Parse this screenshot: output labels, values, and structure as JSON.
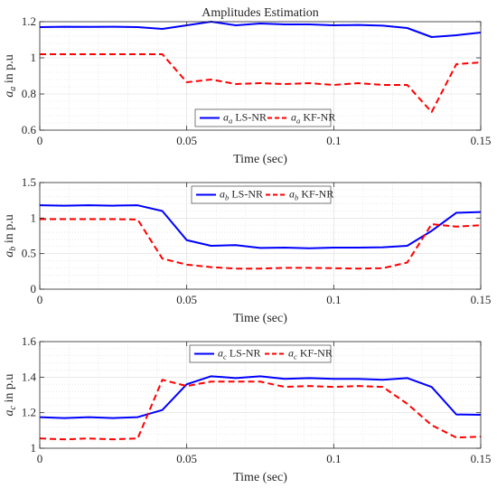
{
  "chart_data": [
    {
      "type": "line",
      "title": "Amplitudes Estimation",
      "xlabel": "Time (sec)",
      "ylabel": "a_a in p.u",
      "ylabel_parts": {
        "sym": "a",
        "sub": "a",
        "rest": " in p.u"
      },
      "xlim": [
        0,
        0.15
      ],
      "ylim": [
        0.6,
        1.2
      ],
      "xticks": [
        0,
        0.05,
        0.1,
        0.15
      ],
      "xtick_labels": [
        "0",
        "0.05",
        "0.1",
        "0.15"
      ],
      "yticks": [
        0.6,
        0.8,
        1.0,
        1.2
      ],
      "ytick_labels": [
        "0.6",
        "0.8",
        "1",
        "1.2"
      ],
      "grid": true,
      "legend_position": "bottom-center",
      "legend_orientation": "horizontal",
      "series": [
        {
          "name": "a_a LS-NR",
          "name_parts": {
            "sym": "a",
            "sub": "a",
            "rest": " LS-NR"
          },
          "color": "#0000ff",
          "dash": "solid",
          "x": [
            0,
            0.0083,
            0.0167,
            0.025,
            0.0333,
            0.0417,
            0.05,
            0.0583,
            0.0667,
            0.075,
            0.0833,
            0.0917,
            0.1,
            0.1083,
            0.1167,
            0.125,
            0.1333,
            0.1417,
            0.15
          ],
          "y": [
            1.17,
            1.172,
            1.171,
            1.172,
            1.17,
            1.16,
            1.18,
            1.2,
            1.18,
            1.19,
            1.185,
            1.185,
            1.18,
            1.182,
            1.178,
            1.165,
            1.115,
            1.125,
            1.14
          ]
        },
        {
          "name": "a_a KF-NR",
          "name_parts": {
            "sym": "a",
            "sub": "a",
            "rest": " KF-NR"
          },
          "color": "#ff0000",
          "dash": "dashed",
          "x": [
            0,
            0.0083,
            0.0167,
            0.025,
            0.0333,
            0.0417,
            0.05,
            0.0583,
            0.0667,
            0.075,
            0.0833,
            0.0917,
            0.1,
            0.1083,
            0.1167,
            0.125,
            0.1333,
            0.1417,
            0.15
          ],
          "y": [
            1.02,
            1.02,
            1.02,
            1.02,
            1.02,
            1.02,
            0.865,
            0.88,
            0.855,
            0.86,
            0.855,
            0.86,
            0.85,
            0.86,
            0.85,
            0.85,
            0.7,
            0.965,
            0.975
          ]
        }
      ]
    },
    {
      "type": "line",
      "title": "",
      "xlabel": "Time (sec)",
      "ylabel": "a_b in p.u",
      "ylabel_parts": {
        "sym": "a",
        "sub": "b",
        "rest": " in p.u"
      },
      "xlim": [
        0,
        0.15
      ],
      "ylim": [
        0,
        1.5
      ],
      "xticks": [
        0,
        0.05,
        0.1,
        0.15
      ],
      "xtick_labels": [
        "0",
        "0.05",
        "0.1",
        "0.15"
      ],
      "yticks": [
        0,
        0.5,
        1.0,
        1.5
      ],
      "ytick_labels": [
        "0",
        "0.5",
        "1",
        "1.5"
      ],
      "grid": true,
      "legend_position": "top-center",
      "legend_orientation": "horizontal",
      "series": [
        {
          "name": "a_b LS-NR",
          "name_parts": {
            "sym": "a",
            "sub": "b",
            "rest": " LS-NR"
          },
          "color": "#0000ff",
          "dash": "solid",
          "x": [
            0,
            0.0083,
            0.0167,
            0.025,
            0.0333,
            0.0417,
            0.05,
            0.0583,
            0.0667,
            0.075,
            0.0833,
            0.0917,
            0.1,
            0.1083,
            0.1167,
            0.125,
            0.1333,
            0.1417,
            0.15
          ],
          "y": [
            1.18,
            1.175,
            1.18,
            1.175,
            1.18,
            1.1,
            0.69,
            0.61,
            0.62,
            0.58,
            0.585,
            0.575,
            0.585,
            0.585,
            0.59,
            0.61,
            0.82,
            1.075,
            1.085
          ]
        },
        {
          "name": "a_b KF-NR",
          "name_parts": {
            "sym": "a",
            "sub": "b",
            "rest": " KF-NR"
          },
          "color": "#ff0000",
          "dash": "dashed",
          "x": [
            0,
            0.0083,
            0.0167,
            0.025,
            0.0333,
            0.0417,
            0.05,
            0.0583,
            0.0667,
            0.075,
            0.0833,
            0.0917,
            0.1,
            0.1083,
            0.1167,
            0.125,
            0.1333,
            0.1417,
            0.15
          ],
          "y": [
            0.985,
            0.985,
            0.985,
            0.985,
            0.98,
            0.43,
            0.345,
            0.31,
            0.29,
            0.29,
            0.3,
            0.3,
            0.295,
            0.29,
            0.295,
            0.375,
            0.915,
            0.88,
            0.9
          ]
        }
      ]
    },
    {
      "type": "line",
      "title": "",
      "xlabel": "Time (sec)",
      "ylabel": "a_c in p.u",
      "ylabel_parts": {
        "sym": "a",
        "sub": "c",
        "rest": " in p.u"
      },
      "xlim": [
        0,
        0.15
      ],
      "ylim": [
        1.0,
        1.6
      ],
      "xticks": [
        0,
        0.05,
        0.1,
        0.15
      ],
      "xtick_labels": [
        "0",
        "0.05",
        "0.1",
        "0.15"
      ],
      "yticks": [
        1.0,
        1.2,
        1.4,
        1.6
      ],
      "ytick_labels": [
        "1",
        "1.2",
        "1.4",
        "1.6"
      ],
      "grid": true,
      "legend_position": "top-center",
      "legend_orientation": "horizontal",
      "series": [
        {
          "name": "a_c LS-NR",
          "name_parts": {
            "sym": "a",
            "sub": "c",
            "rest": " LS-NR"
          },
          "color": "#0000ff",
          "dash": "solid",
          "x": [
            0,
            0.0083,
            0.0167,
            0.025,
            0.0333,
            0.0417,
            0.05,
            0.0583,
            0.0667,
            0.075,
            0.0833,
            0.0917,
            0.1,
            0.1083,
            0.1167,
            0.125,
            0.1333,
            0.1417,
            0.15
          ],
          "y": [
            1.175,
            1.17,
            1.175,
            1.17,
            1.175,
            1.215,
            1.36,
            1.405,
            1.395,
            1.405,
            1.39,
            1.395,
            1.39,
            1.39,
            1.385,
            1.395,
            1.345,
            1.19,
            1.188
          ]
        },
        {
          "name": "a_c KF-NR",
          "name_parts": {
            "sym": "a",
            "sub": "c",
            "rest": " KF-NR"
          },
          "color": "#ff0000",
          "dash": "dashed",
          "x": [
            0,
            0.0083,
            0.0167,
            0.025,
            0.0333,
            0.0417,
            0.05,
            0.0583,
            0.0667,
            0.075,
            0.0833,
            0.0917,
            0.1,
            0.1083,
            0.1167,
            0.125,
            0.1333,
            0.1417,
            0.15
          ],
          "y": [
            1.055,
            1.05,
            1.055,
            1.05,
            1.055,
            1.385,
            1.35,
            1.375,
            1.375,
            1.375,
            1.345,
            1.35,
            1.345,
            1.35,
            1.345,
            1.25,
            1.13,
            1.06,
            1.065
          ]
        }
      ]
    }
  ]
}
